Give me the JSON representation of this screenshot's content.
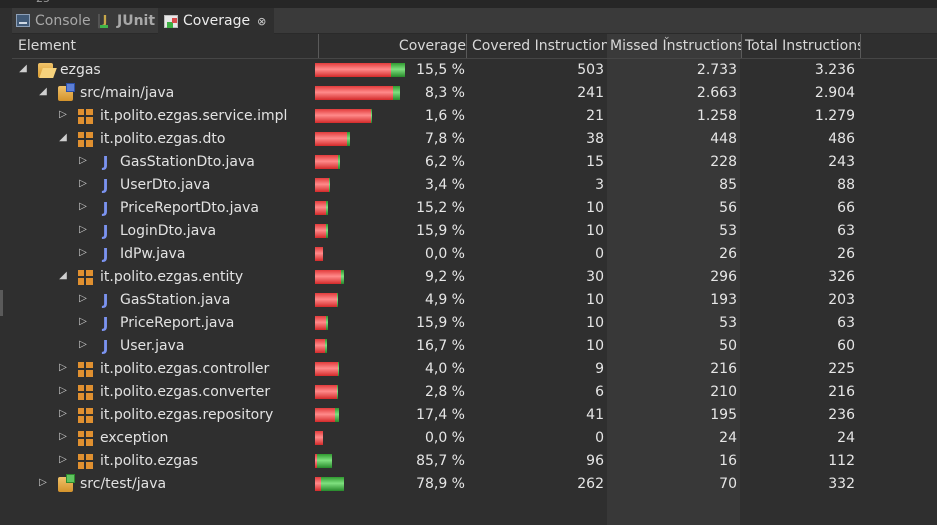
{
  "top_fragment": "25",
  "tabs": [
    {
      "label": "Console",
      "icon": "console-icon",
      "active": false
    },
    {
      "label": "JUnit",
      "icon": "junit-icon",
      "active": false
    },
    {
      "label": "Coverage",
      "icon": "coverage-icon",
      "active": true,
      "close_glyph": "⊗"
    }
  ],
  "columns": {
    "element": "Element",
    "coverage": "Coverage",
    "covered": "Covered Instructions",
    "missed": "Missed Instructions",
    "total": "Total Instructions"
  },
  "colors": {
    "covered_bar": "#3fc43f",
    "missed_bar": "#e23b3b",
    "background": "#2f2f2f"
  },
  "rows": [
    {
      "label": "ezgas",
      "icon": "folder-open-icon",
      "level": 0,
      "expanded": true,
      "coverage": "15,5 %",
      "covered": "503",
      "missed": "2.733",
      "total": "3.236"
    },
    {
      "label": "src/main/java",
      "icon": "source-folder-icon",
      "level": 1,
      "expanded": true,
      "coverage": "8,3 %",
      "covered": "241",
      "missed": "2.663",
      "total": "2.904"
    },
    {
      "label": "it.polito.ezgas.service.impl",
      "icon": "package-icon",
      "level": 2,
      "expanded": false,
      "coverage": "1,6 %",
      "covered": "21",
      "missed": "1.258",
      "total": "1.279"
    },
    {
      "label": "it.polito.ezgas.dto",
      "icon": "package-icon",
      "level": 2,
      "expanded": true,
      "coverage": "7,8 %",
      "covered": "38",
      "missed": "448",
      "total": "486"
    },
    {
      "label": "GasStationDto.java",
      "icon": "java-file-icon",
      "level": 3,
      "expanded": false,
      "coverage": "6,2 %",
      "covered": "15",
      "missed": "228",
      "total": "243"
    },
    {
      "label": "UserDto.java",
      "icon": "java-file-icon",
      "level": 3,
      "expanded": false,
      "coverage": "3,4 %",
      "covered": "3",
      "missed": "85",
      "total": "88"
    },
    {
      "label": "PriceReportDto.java",
      "icon": "java-file-icon",
      "level": 3,
      "expanded": false,
      "coverage": "15,2 %",
      "covered": "10",
      "missed": "56",
      "total": "66"
    },
    {
      "label": "LoginDto.java",
      "icon": "java-file-icon",
      "level": 3,
      "expanded": false,
      "coverage": "15,9 %",
      "covered": "10",
      "missed": "53",
      "total": "63"
    },
    {
      "label": "IdPw.java",
      "icon": "java-file-icon",
      "level": 3,
      "expanded": false,
      "coverage": "0,0 %",
      "covered": "0",
      "missed": "26",
      "total": "26"
    },
    {
      "label": "it.polito.ezgas.entity",
      "icon": "package-icon",
      "level": 2,
      "expanded": true,
      "coverage": "9,2 %",
      "covered": "30",
      "missed": "296",
      "total": "326"
    },
    {
      "label": "GasStation.java",
      "icon": "java-file-icon",
      "level": 3,
      "expanded": false,
      "coverage": "4,9 %",
      "covered": "10",
      "missed": "193",
      "total": "203"
    },
    {
      "label": "PriceReport.java",
      "icon": "java-file-icon",
      "level": 3,
      "expanded": false,
      "coverage": "15,9 %",
      "covered": "10",
      "missed": "53",
      "total": "63"
    },
    {
      "label": "User.java",
      "icon": "java-file-icon",
      "level": 3,
      "expanded": false,
      "coverage": "16,7 %",
      "covered": "10",
      "missed": "50",
      "total": "60"
    },
    {
      "label": "it.polito.ezgas.controller",
      "icon": "package-icon",
      "level": 2,
      "expanded": false,
      "coverage": "4,0 %",
      "covered": "9",
      "missed": "216",
      "total": "225"
    },
    {
      "label": "it.polito.ezgas.converter",
      "icon": "package-icon",
      "level": 2,
      "expanded": false,
      "coverage": "2,8 %",
      "covered": "6",
      "missed": "210",
      "total": "216"
    },
    {
      "label": "it.polito.ezgas.repository",
      "icon": "package-icon",
      "level": 2,
      "expanded": false,
      "coverage": "17,4 %",
      "covered": "41",
      "missed": "195",
      "total": "236"
    },
    {
      "label": "exception",
      "icon": "package-icon",
      "level": 2,
      "expanded": false,
      "coverage": "0,0 %",
      "covered": "0",
      "missed": "24",
      "total": "24"
    },
    {
      "label": "it.polito.ezgas",
      "icon": "package-icon",
      "level": 2,
      "expanded": false,
      "coverage": "85,7 %",
      "covered": "96",
      "missed": "16",
      "total": "112"
    },
    {
      "label": "src/test/java",
      "icon": "test-source-folder-icon",
      "level": 1,
      "expanded": false,
      "coverage": "78,9 %",
      "covered": "262",
      "missed": "70",
      "total": "332"
    }
  ]
}
